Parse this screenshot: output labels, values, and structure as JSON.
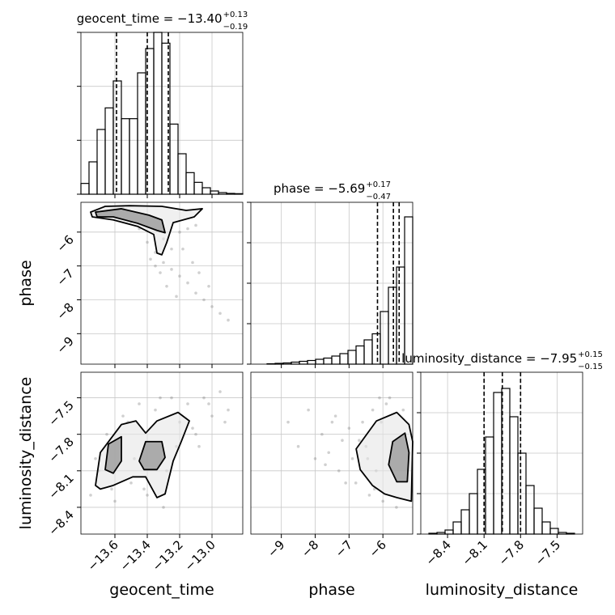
{
  "chart_data": {
    "type": "corner",
    "variables": [
      {
        "name": "geocent_time",
        "title": {
          "text": "geocent_time = −13.40",
          "plus": "+0.13",
          "minus": "−0.19"
        },
        "lim": [
          -13.81,
          -12.81
        ],
        "ticks": [
          {
            "value": -13.6,
            "label": "−13.6"
          },
          {
            "value": -13.4,
            "label": "−13.4"
          },
          {
            "value": -13.2,
            "label": "−13.2"
          },
          {
            "value": -13.0,
            "label": "−13.0"
          }
        ],
        "bins": [
          -13.81,
          -13.76,
          -13.71,
          -13.66,
          -13.61,
          -13.56,
          -13.51,
          -13.46,
          -13.41,
          -13.36,
          -13.31,
          -13.26,
          -13.21,
          -13.16,
          -13.11,
          -13.06,
          -13.01,
          -12.96,
          -12.91,
          -12.86,
          -12.81
        ],
        "values": [
          0.2,
          0.6,
          1.2,
          1.6,
          2.1,
          1.4,
          1.4,
          2.25,
          2.7,
          3.0,
          2.8,
          1.3,
          0.75,
          0.4,
          0.22,
          0.12,
          0.06,
          0.03,
          0.015,
          0.01
        ],
        "hist_ylim": [
          0,
          3
        ],
        "hist_yticks": [
          0,
          1,
          2,
          3
        ],
        "quantiles": [
          -13.59,
          -13.4,
          -13.27
        ]
      },
      {
        "name": "phase",
        "title": {
          "text": "phase = −5.69",
          "plus": "+0.17",
          "minus": "−0.47"
        },
        "lim": [
          -9.9,
          -5.12
        ],
        "ticks": [
          {
            "value": -9,
            "label": "−9"
          },
          {
            "value": -8,
            "label": "−8"
          },
          {
            "value": -7,
            "label": "−7"
          },
          {
            "value": -6,
            "label": "−6"
          }
        ],
        "bins": [
          -9.9,
          -9.661,
          -9.422,
          -9.183,
          -8.944,
          -8.705,
          -8.466,
          -8.227,
          -7.988,
          -7.749,
          -7.51,
          -7.271,
          -7.032,
          -6.793,
          -6.554,
          -6.315,
          -6.076,
          -5.837,
          -5.598,
          -5.359,
          -5.12
        ],
        "values": [
          0,
          0,
          0.01,
          0.02,
          0.03,
          0.05,
          0.07,
          0.09,
          0.12,
          0.15,
          0.2,
          0.26,
          0.34,
          0.45,
          0.6,
          0.75,
          1.3,
          1.9,
          2.4,
          3.64
        ],
        "hist_ylim": [
          0,
          4
        ],
        "hist_yticks": [
          0,
          1,
          2,
          3,
          4
        ],
        "quantiles": [
          -6.16,
          -5.69,
          -5.52
        ]
      },
      {
        "name": "luminosity_distance",
        "title": {
          "text": "luminosity_distance = −7.95",
          "plus": "+0.15",
          "minus": "−0.15"
        },
        "lim": [
          -8.62,
          -7.29
        ],
        "ticks": [
          {
            "value": -8.4,
            "label": "−8.4"
          },
          {
            "value": -8.1,
            "label": "−8.1"
          },
          {
            "value": -7.8,
            "label": "−7.8"
          },
          {
            "value": -7.5,
            "label": "−7.5"
          }
        ],
        "bins": [
          -8.62,
          -8.5535,
          -8.487,
          -8.4205,
          -8.354,
          -8.2875,
          -8.221,
          -8.1545,
          -8.088,
          -8.0215,
          -7.955,
          -7.8885,
          -7.822,
          -7.7555,
          -7.689,
          -7.6225,
          -7.556,
          -7.4895,
          -7.423,
          -7.3565,
          -7.29
        ],
        "values": [
          0,
          0.02,
          0.04,
          0.1,
          0.3,
          0.6,
          1.0,
          1.6,
          2.4,
          3.5,
          3.6,
          2.9,
          2.0,
          1.2,
          0.64,
          0.3,
          0.14,
          0.04,
          0.02,
          0
        ],
        "hist_ylim": [
          0,
          4
        ],
        "hist_yticks": [
          0,
          1,
          2,
          3,
          4
        ],
        "quantiles": [
          -8.1,
          -7.95,
          -7.8
        ]
      }
    ],
    "pairs": [
      {
        "points": {
          "x": [
            -13.7,
            -13.65,
            -13.55,
            -13.5,
            -13.45,
            -13.4,
            -13.35,
            -13.3,
            -13.25,
            -13.2,
            -13.15,
            -13.1,
            -13.05,
            -13.0,
            -12.95,
            -12.9,
            -13.38,
            -13.32,
            -13.28,
            -13.22,
            -13.18,
            -13.12,
            -13.08,
            -13.02,
            -13.3,
            -13.25,
            -13.2,
            -13.15,
            -13.1,
            -13.35
          ],
          "y": [
            -5.5,
            -5.4,
            -5.3,
            -5.7,
            -5.9,
            -6.3,
            -6.6,
            -6.9,
            -7.1,
            -7.3,
            -7.5,
            -7.8,
            -8.0,
            -8.2,
            -8.4,
            -8.6,
            -6.8,
            -7.2,
            -7.6,
            -7.9,
            -6.5,
            -6.9,
            -7.2,
            -7.6,
            -6.2,
            -6.5,
            -6.0,
            -5.9,
            -5.8,
            -7.0
          ]
        },
        "contours": [
          {
            "x": [
              -13.75,
              -13.66,
              -13.51,
              -13.31,
              -13.16,
              -13.06,
              -13.11,
              -13.24,
              -13.28,
              -13.31,
              -13.34,
              -13.36,
              -13.46,
              -13.61,
              -13.74
            ],
            "y": [
              -5.41,
              -5.24,
              -5.22,
              -5.24,
              -5.36,
              -5.31,
              -5.55,
              -5.72,
              -6.31,
              -6.67,
              -6.62,
              -6.07,
              -5.83,
              -5.64,
              -5.55
            ]
          },
          {
            "x": [
              -13.72,
              -13.56,
              -13.39,
              -13.31,
              -13.29,
              -13.34,
              -13.46,
              -13.61,
              -13.71
            ],
            "y": [
              -5.41,
              -5.31,
              -5.5,
              -5.64,
              -6.02,
              -5.95,
              -5.74,
              -5.55,
              -5.55
            ]
          }
        ]
      },
      {
        "points": {
          "x": [
            -13.75,
            -13.7,
            -13.65,
            -13.6,
            -13.55,
            -13.5,
            -13.45,
            -13.4,
            -13.35,
            -13.3,
            -13.25,
            -13.2,
            -13.15,
            -13.1,
            -13.05,
            -13.0,
            -12.95,
            -12.9,
            -13.72,
            -13.62,
            -13.52,
            -13.42,
            -13.32,
            -13.22,
            -13.12,
            -13.02,
            -12.92,
            -13.48,
            -13.28,
            -13.08
          ],
          "y": [
            -8.3,
            -8.1,
            -7.8,
            -8.35,
            -7.65,
            -8.2,
            -7.55,
            -8.3,
            -7.6,
            -8.4,
            -7.5,
            -7.7,
            -7.55,
            -7.8,
            -7.5,
            -7.65,
            -7.45,
            -7.6,
            -8.0,
            -8.25,
            -7.7,
            -8.25,
            -7.5,
            -7.9,
            -7.75,
            -7.55,
            -7.7,
            -8.0,
            -8.1,
            -7.9
          ]
        },
        "contours": [
          {
            "x": [
              -13.72,
              -13.69,
              -13.56,
              -13.47,
              -13.41,
              -13.34,
              -13.21,
              -13.14,
              -13.19,
              -13.24,
              -13.29,
              -13.34,
              -13.41,
              -13.49,
              -13.61,
              -13.69
            ],
            "y": [
              -8.22,
              -7.95,
              -7.72,
              -7.69,
              -7.79,
              -7.69,
              -7.62,
              -7.69,
              -7.86,
              -8.02,
              -8.29,
              -8.32,
              -8.15,
              -8.15,
              -8.22,
              -8.25
            ]
          },
          {
            "x": [
              -13.66,
              -13.64,
              -13.56,
              -13.56,
              -13.61
            ],
            "y": [
              -8.09,
              -7.88,
              -7.82,
              -8.02,
              -8.12
            ]
          },
          {
            "x": [
              -13.45,
              -13.41,
              -13.31,
              -13.29,
              -13.34,
              -13.42
            ],
            "y": [
              -8.02,
              -7.86,
              -7.86,
              -7.99,
              -8.09,
              -8.09
            ]
          }
        ]
      },
      {
        "points": {
          "x": [
            -8.8,
            -8.5,
            -8.2,
            -8.0,
            -7.8,
            -7.6,
            -7.5,
            -7.3,
            -7.2,
            -7.0,
            -6.9,
            -6.8,
            -6.6,
            -6.5,
            -6.4,
            -6.3,
            -6.2,
            -6.1,
            -6.0,
            -5.9,
            -7.7,
            -7.4,
            -7.1,
            -6.7,
            -6.45,
            -6.25,
            -6.05,
            -5.8,
            -5.6,
            -5.4
          ],
          "y": [
            -7.7,
            -7.9,
            -7.6,
            -8.0,
            -7.8,
            -7.95,
            -7.7,
            -8.1,
            -7.85,
            -7.75,
            -8.0,
            -8.2,
            -7.7,
            -7.9,
            -8.3,
            -7.6,
            -8.1,
            -7.5,
            -8.35,
            -7.55,
            -8.05,
            -7.65,
            -8.2,
            -7.85,
            -8.0,
            -8.25,
            -7.7,
            -7.5,
            -8.4,
            -7.6
          ]
        },
        "contours": [
          {
            "x": [
              -6.67,
              -6.79,
              -6.19,
              -5.59,
              -5.23,
              -5.12,
              -5.16,
              -5.59,
              -5.95,
              -6.31
            ],
            "y": [
              -8.09,
              -7.92,
              -7.69,
              -7.62,
              -7.72,
              -7.86,
              -8.35,
              -8.32,
              -8.29,
              -8.22
            ]
          },
          {
            "x": [
              -5.83,
              -5.71,
              -5.35,
              -5.23,
              -5.28,
              -5.59
            ],
            "y": [
              -8.05,
              -7.86,
              -7.79,
              -7.95,
              -8.19,
              -8.19
            ]
          }
        ]
      }
    ]
  }
}
